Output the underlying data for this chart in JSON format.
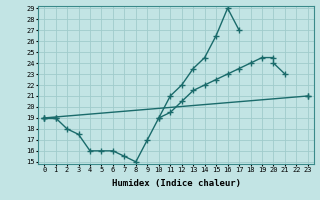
{
  "xlabel": "Humidex (Indice chaleur)",
  "bg_color": "#c2e4e4",
  "grid_color": "#a0cccc",
  "line_color": "#1a6b6b",
  "x_values": [
    0,
    1,
    2,
    3,
    4,
    5,
    6,
    7,
    8,
    9,
    10,
    11,
    12,
    13,
    14,
    15,
    16,
    17,
    18,
    19,
    20,
    21,
    22,
    23
  ],
  "line1": [
    19.0,
    19.0,
    18.0,
    17.5,
    16.0,
    16.0,
    16.0,
    15.5,
    15.0,
    17.0,
    19.0,
    21.0,
    22.0,
    23.5,
    24.5,
    26.5,
    29.0,
    27.0,
    null,
    null,
    null,
    null,
    null,
    null
  ],
  "line2": [
    19.0,
    19.0,
    null,
    null,
    null,
    null,
    null,
    null,
    null,
    null,
    null,
    null,
    null,
    null,
    null,
    null,
    null,
    null,
    null,
    null,
    24.0,
    23.0,
    null,
    21.0
  ],
  "line3": [
    null,
    null,
    null,
    null,
    null,
    null,
    null,
    null,
    null,
    null,
    19.0,
    19.5,
    20.5,
    21.5,
    22.0,
    22.5,
    23.0,
    23.5,
    24.0,
    24.5,
    24.5,
    null,
    null,
    null
  ],
  "line_diag": [
    [
      0,
      23
    ],
    [
      19.0,
      21.0
    ]
  ],
  "ylim": [
    15,
    29
  ],
  "xlim": [
    -0.5,
    23.5
  ],
  "yticks": [
    15,
    16,
    17,
    18,
    19,
    20,
    21,
    22,
    23,
    24,
    25,
    26,
    27,
    28,
    29
  ],
  "xticks": [
    0,
    1,
    2,
    3,
    4,
    5,
    6,
    7,
    8,
    9,
    10,
    11,
    12,
    13,
    14,
    15,
    16,
    17,
    18,
    19,
    20,
    21,
    22,
    23
  ],
  "xlabel_fontsize": 6.5,
  "tick_fontsize": 5.0
}
